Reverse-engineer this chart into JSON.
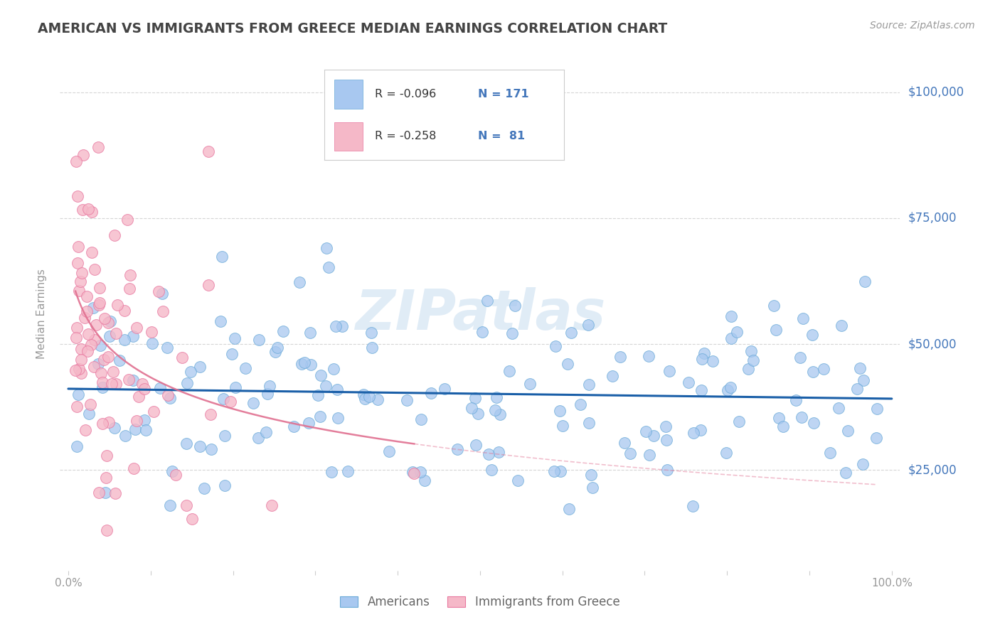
{
  "title": "AMERICAN VS IMMIGRANTS FROM GREECE MEDIAN EARNINGS CORRELATION CHART",
  "source": "Source: ZipAtlas.com",
  "ylabel": "Median Earnings",
  "watermark": "ZIPatlas",
  "xmin": 0.0,
  "xmax": 1.0,
  "ymin": 5000,
  "ymax": 107000,
  "yticks": [
    25000,
    50000,
    75000,
    100000
  ],
  "ytick_labels": [
    "$25,000",
    "$50,000",
    "$75,000",
    "$100,000"
  ],
  "xtick_positions": [
    0.0,
    0.1,
    0.2,
    0.3,
    0.4,
    0.5,
    0.6,
    0.7,
    0.8,
    0.9,
    1.0
  ],
  "xtick_labels": [
    "0.0%",
    "",
    "",
    "",
    "",
    "",
    "",
    "",
    "",
    "",
    "100.0%"
  ],
  "american_color": "#a8c8f0",
  "american_edge_color": "#6aaad8",
  "greek_color": "#f5b8c8",
  "greek_edge_color": "#e878a0",
  "american_line_color": "#1a5fa8",
  "greek_line_color": "#e07090",
  "grid_color": "#cccccc",
  "background_color": "#ffffff",
  "title_color": "#444444",
  "axis_label_color": "#4477bb",
  "tick_color": "#999999",
  "legend_r1": "R = -0.096",
  "legend_n1": "N = 171",
  "legend_r2": "R = -0.258",
  "legend_n2": "N =  81"
}
